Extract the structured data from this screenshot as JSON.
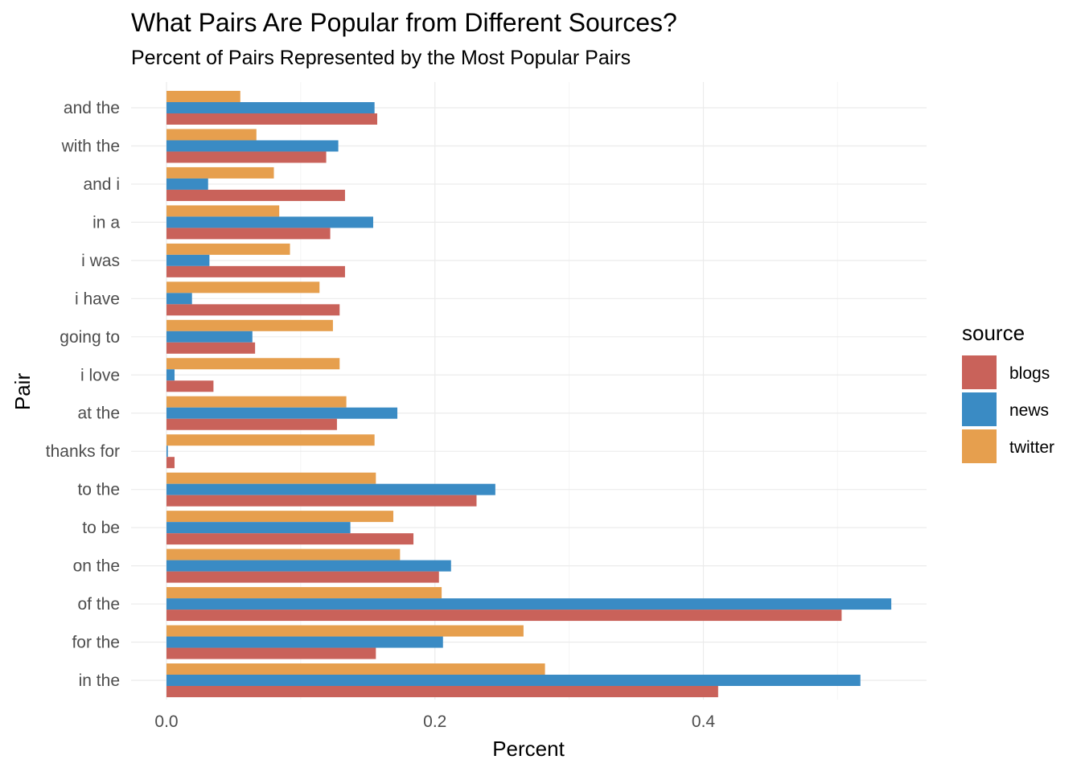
{
  "chart_data": {
    "type": "bar",
    "orientation": "horizontal",
    "title": "What Pairs Are Popular from Different Sources?",
    "subtitle": "Percent of Pairs Represented by the Most Popular Pairs",
    "xlabel": "Percent",
    "ylabel": "Pair",
    "xlim": [
      0,
      0.565
    ],
    "x_ticks": [
      "0.0",
      "0.2",
      "0.4"
    ],
    "x_tick_values": [
      0,
      0.2,
      0.4
    ],
    "grid": true,
    "legend_title": "source",
    "legend_position": "right",
    "categories": [
      "and the",
      "with the",
      "and i",
      "in a",
      "i was",
      "i have",
      "going to",
      "i love",
      "at the",
      "thanks for",
      "to the",
      "to be",
      "on the",
      "of the",
      "for the",
      "in the"
    ],
    "series": [
      {
        "name": "twitter",
        "color": "#E69F4E",
        "values": [
          0.055,
          0.067,
          0.08,
          0.084,
          0.092,
          0.114,
          0.124,
          0.129,
          0.134,
          0.155,
          0.156,
          0.169,
          0.174,
          0.205,
          0.266,
          0.282
        ]
      },
      {
        "name": "news",
        "color": "#3A8BC4",
        "values": [
          0.155,
          0.128,
          0.031,
          0.154,
          0.032,
          0.019,
          0.064,
          0.006,
          0.172,
          0.001,
          0.245,
          0.137,
          0.212,
          0.54,
          0.206,
          0.517
        ]
      },
      {
        "name": "blogs",
        "color": "#C9625A",
        "values": [
          0.157,
          0.119,
          0.133,
          0.122,
          0.133,
          0.129,
          0.066,
          0.035,
          0.127,
          0.006,
          0.231,
          0.184,
          0.203,
          0.503,
          0.156,
          0.411
        ]
      }
    ],
    "legend": [
      {
        "name": "blogs",
        "color": "#C9625A"
      },
      {
        "name": "news",
        "color": "#3A8BC4"
      },
      {
        "name": "twitter",
        "color": "#E69F4E"
      }
    ]
  }
}
